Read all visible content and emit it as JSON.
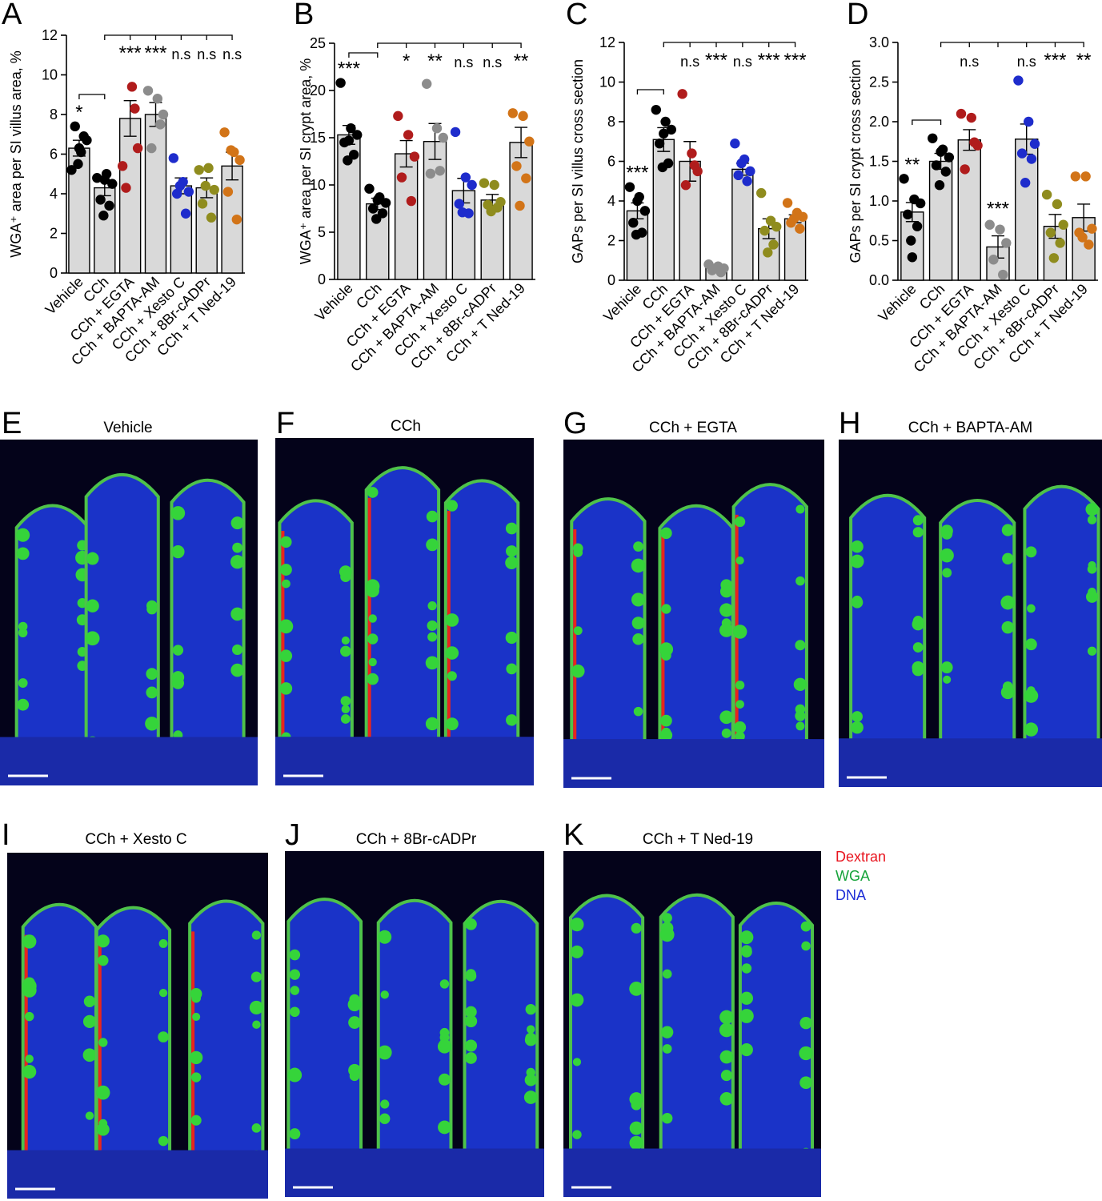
{
  "chart_data": [
    {
      "panel": "A",
      "type": "bar",
      "ylabel": "WGA⁺ area per SI villus area, %",
      "ylim": [
        0,
        12
      ],
      "yticks": [
        0,
        2,
        4,
        6,
        8,
        10,
        12
      ],
      "categories": [
        "Vehicle",
        "CCh",
        "CCh + EGTA",
        "CCh + BAPTA-AM",
        "CCh + Xesto C",
        "CCh + 8Br-cADPr",
        "CCh + T Ned-19"
      ],
      "values": [
        6.3,
        4.3,
        7.8,
        8.0,
        4.4,
        4.3,
        5.4
      ],
      "errors": [
        0.4,
        0.4,
        0.9,
        0.6,
        0.4,
        0.5,
        0.7
      ],
      "points": [
        [
          5.2,
          6.1,
          6.7,
          7.4,
          6.9,
          5.5,
          6.3
        ],
        [
          4.8,
          5.0,
          4.5,
          3.7,
          3.4,
          2.9,
          4.7
        ],
        [
          5.4,
          9.4,
          6.3,
          4.3,
          8.3
        ],
        [
          9.2,
          8.8,
          8.0,
          6.3,
          7.5
        ],
        [
          5.8,
          4.6,
          4.1,
          4.0,
          3.0,
          4.4
        ],
        [
          5.2,
          5.3,
          4.2,
          3.5,
          2.8,
          4.4
        ],
        [
          7.1,
          6.1,
          5.7,
          4.1,
          2.7,
          6.2
        ]
      ],
      "colors": [
        "#000000",
        "#000000",
        "#b01c1c",
        "#8c8c8c",
        "#1e2ccc",
        "#8f8c1e",
        "#d27418"
      ],
      "significance": [
        "*",
        "",
        "***",
        "***",
        "n.s",
        "n.s",
        "n.s"
      ]
    },
    {
      "panel": "B",
      "type": "bar",
      "ylabel": "WGA⁺ area per SI crypt area, %",
      "ylim": [
        0,
        25
      ],
      "yticks": [
        0,
        5,
        10,
        15,
        20,
        25
      ],
      "categories": [
        "Vehicle",
        "CCh",
        "CCh + EGTA",
        "CCh + BAPTA-AM",
        "CCh + Xesto C",
        "CCh + 8Br-cADPr",
        "CCh + T Ned-19"
      ],
      "values": [
        15.3,
        8.0,
        13.3,
        14.6,
        9.4,
        8.4,
        14.5
      ],
      "errors": [
        1.0,
        0.6,
        1.4,
        1.9,
        1.3,
        0.6,
        1.6
      ],
      "points": [
        [
          20.8,
          16.0,
          15.3,
          14.5,
          13.2,
          12.6,
          14.7
        ],
        [
          9.6,
          8.7,
          8.1,
          7.5,
          7.0,
          6.4,
          8.4
        ],
        [
          17.3,
          15.3,
          13.0,
          10.8,
          8.3
        ],
        [
          20.7,
          16.0,
          15.0,
          11.2,
          11.5
        ],
        [
          15.6,
          10.8,
          10.0,
          8.0,
          7.0,
          7.1
        ],
        [
          10.2,
          10.0,
          8.2,
          7.9,
          7.6,
          7.2
        ],
        [
          17.6,
          17.3,
          14.6,
          12.0,
          10.7,
          7.8
        ]
      ],
      "colors": [
        "#000000",
        "#000000",
        "#b01c1c",
        "#8c8c8c",
        "#1e2ccc",
        "#8f8c1e",
        "#d27418"
      ],
      "significance": [
        "***",
        "",
        "*",
        "**",
        "n.s",
        "n.s",
        "**"
      ]
    },
    {
      "panel": "C",
      "type": "bar",
      "ylabel": "GAPs per SI villus cross section",
      "ylim": [
        0,
        12
      ],
      "yticks": [
        0,
        2,
        4,
        6,
        8,
        10,
        12
      ],
      "categories": [
        "Vehicle",
        "CCh",
        "CCh + EGTA",
        "CCh + BAPTA-AM",
        "CCh + Xesto C",
        "CCh + 8Br-cADPr",
        "CCh + T Ned-19"
      ],
      "values": [
        3.5,
        7.1,
        6.0,
        0.6,
        5.6,
        2.6,
        3.1
      ],
      "errors": [
        0.4,
        0.6,
        1.0,
        0.1,
        0.3,
        0.5,
        0.2
      ],
      "points": [
        [
          4.7,
          4.2,
          3.5,
          2.9,
          2.4,
          2.3,
          4.0
        ],
        [
          8.6,
          8.0,
          7.6,
          6.9,
          5.9,
          5.7,
          7.4
        ],
        [
          9.4,
          6.4,
          5.5,
          4.8,
          5.8
        ],
        [
          0.8,
          0.7,
          0.6,
          0.5,
          0.4,
          0.6
        ],
        [
          6.9,
          6.1,
          5.5,
          5.3,
          5.0,
          5.9
        ],
        [
          4.4,
          3.0,
          2.7,
          2.5,
          1.8,
          1.4
        ],
        [
          3.9,
          3.4,
          3.2,
          2.9,
          2.6,
          3.1
        ]
      ],
      "colors": [
        "#000000",
        "#000000",
        "#b01c1c",
        "#8c8c8c",
        "#1e2ccc",
        "#8f8c1e",
        "#d27418"
      ],
      "significance": [
        "***",
        "",
        "n.s",
        "***",
        "n.s",
        "***",
        "***"
      ]
    },
    {
      "panel": "D",
      "type": "bar",
      "ylabel": "GAPs per SI crypt cross section",
      "ylim": [
        0,
        3.0
      ],
      "yticks": [
        0.0,
        0.5,
        1.0,
        1.5,
        2.0,
        2.5,
        3.0
      ],
      "categories": [
        "Vehicle",
        "CCh",
        "CCh + EGTA",
        "CCh + BAPTA-AM",
        "CCh + Xesto C",
        "CCh + 8Br-cADPr",
        "CCh + T Ned-19"
      ],
      "values": [
        0.86,
        1.5,
        1.77,
        0.42,
        1.78,
        0.68,
        0.79
      ],
      "errors": [
        0.12,
        0.1,
        0.13,
        0.14,
        0.19,
        0.15,
        0.17
      ],
      "points": [
        [
          1.28,
          1.02,
          0.97,
          0.83,
          0.68,
          0.5,
          0.29
        ],
        [
          1.79,
          1.65,
          1.55,
          1.45,
          1.37,
          1.2,
          1.62
        ],
        [
          2.1,
          2.05,
          1.7,
          1.4,
          1.74
        ],
        [
          0.7,
          0.64,
          0.47,
          0.26,
          0.07
        ],
        [
          2.52,
          2.0,
          1.72,
          1.6,
          1.53,
          1.23
        ],
        [
          1.08,
          0.96,
          0.7,
          0.6,
          0.47,
          0.28
        ],
        [
          1.31,
          1.31,
          0.65,
          0.6,
          0.45,
          0.54
        ]
      ],
      "colors": [
        "#000000",
        "#000000",
        "#b01c1c",
        "#8c8c8c",
        "#1e2ccc",
        "#8f8c1e",
        "#d27418"
      ],
      "significance": [
        "**",
        "",
        "n.s",
        "***",
        "n.s",
        "***",
        "**"
      ]
    }
  ],
  "micrographs": [
    {
      "letter": "E",
      "title": "Vehicle"
    },
    {
      "letter": "F",
      "title": "CCh"
    },
    {
      "letter": "G",
      "title": "CCh + EGTA"
    },
    {
      "letter": "H",
      "title": "CCh + BAPTA-AM"
    },
    {
      "letter": "I",
      "title": "CCh + Xesto C"
    },
    {
      "letter": "J",
      "title": "CCh + 8Br-cADPr"
    },
    {
      "letter": "K",
      "title": "CCh + T Ned-19"
    }
  ],
  "legend": [
    {
      "label": "Dextran",
      "color": "#e8141e"
    },
    {
      "label": "WGA",
      "color": "#16a33a"
    },
    {
      "label": "DNA",
      "color": "#1c2cd6"
    }
  ]
}
